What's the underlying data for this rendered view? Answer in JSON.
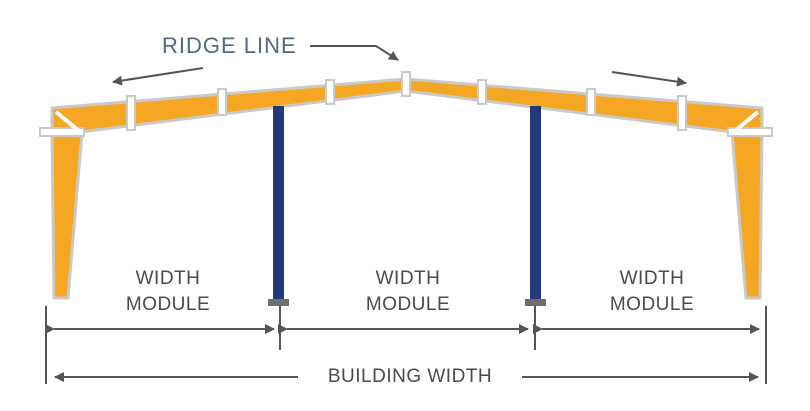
{
  "title": "RIDGE LINE",
  "bays": [
    {
      "line1": "WIDTH",
      "line2": "MODULE"
    },
    {
      "line1": "WIDTH",
      "line2": "MODULE"
    },
    {
      "line1": "WIDTH",
      "line2": "MODULE"
    }
  ],
  "total_label": "BUILDING WIDTH",
  "colors": {
    "frame_fill": "#f5a623",
    "frame_outline": "#c9c9c9",
    "column": "#24397a",
    "column_base": "#6e6e6e",
    "dimension_line": "#555555",
    "title_text": "#4f6a82",
    "label_text": "#4a4a4a"
  }
}
